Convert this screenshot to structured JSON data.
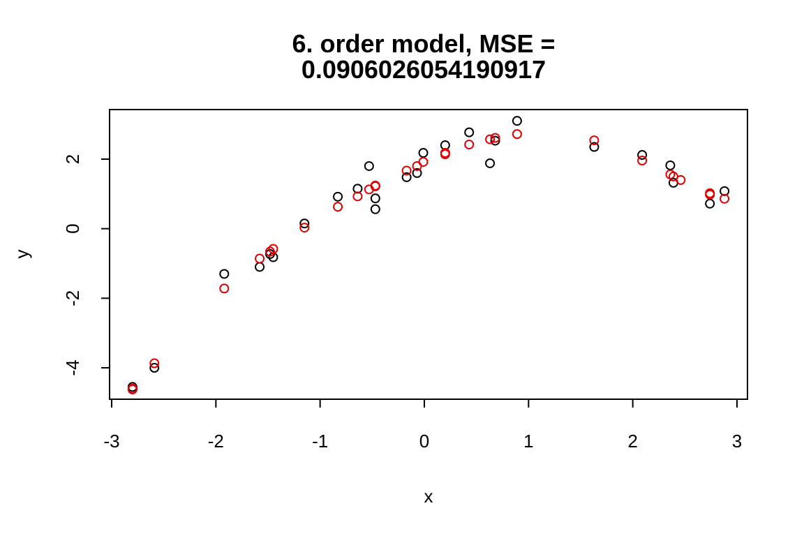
{
  "chart_data": {
    "type": "scatter",
    "title": "6. order model, MSE =",
    "subtitle": "0.0906026054190917",
    "xlabel": "x",
    "ylabel": "y",
    "xlim": [
      -3.0,
      3.0
    ],
    "ylim": [
      -4.8,
      3.4
    ],
    "xticks": [
      -3,
      -2,
      -1,
      0,
      1,
      2,
      3
    ],
    "yticks": [
      -4,
      -2,
      0,
      2
    ],
    "xtick_labels": [
      "-3",
      "-2",
      "-1",
      "0",
      "1",
      "2",
      "3"
    ],
    "ytick_labels": [
      "-4",
      "-2",
      "0",
      "2"
    ],
    "grid": false,
    "legend": null,
    "series": [
      {
        "color": "#000000",
        "marker": "open-circle",
        "x": [
          -2.8,
          -2.8,
          -2.59,
          -1.92,
          -1.58,
          -1.48,
          -1.45,
          -1.15,
          -0.83,
          -0.64,
          -0.53,
          -0.47,
          -0.47,
          -0.17,
          -0.07,
          -0.01,
          0.2,
          0.43,
          0.63,
          0.68,
          0.89,
          1.63,
          2.09,
          2.36,
          2.39,
          2.74,
          2.88
        ],
        "y": [
          -4.55,
          -4.62,
          -4.0,
          -1.3,
          -1.1,
          -0.73,
          -0.82,
          0.15,
          0.92,
          1.15,
          1.8,
          0.87,
          0.56,
          1.48,
          1.6,
          2.18,
          2.4,
          2.77,
          1.88,
          2.53,
          3.1,
          2.35,
          2.12,
          1.82,
          1.32,
          0.72,
          1.08
        ]
      },
      {
        "color": "#df0000",
        "marker": "open-circle",
        "x": [
          -2.8,
          -2.8,
          -2.59,
          -1.92,
          -1.58,
          -1.48,
          -1.45,
          -1.15,
          -0.83,
          -0.64,
          -0.53,
          -0.47,
          -0.47,
          -0.17,
          -0.07,
          -0.01,
          0.2,
          0.2,
          0.43,
          0.63,
          0.68,
          0.89,
          1.63,
          2.09,
          2.36,
          2.39,
          2.46,
          2.74,
          2.74,
          2.88
        ],
        "y": [
          -4.6,
          -4.62,
          -3.87,
          -1.72,
          -0.86,
          -0.66,
          -0.58,
          0.03,
          0.63,
          0.93,
          1.13,
          1.22,
          1.24,
          1.67,
          1.8,
          1.92,
          2.14,
          2.18,
          2.42,
          2.57,
          2.61,
          2.72,
          2.54,
          1.96,
          1.56,
          1.5,
          1.4,
          0.98,
          1.02,
          0.86
        ]
      }
    ]
  }
}
